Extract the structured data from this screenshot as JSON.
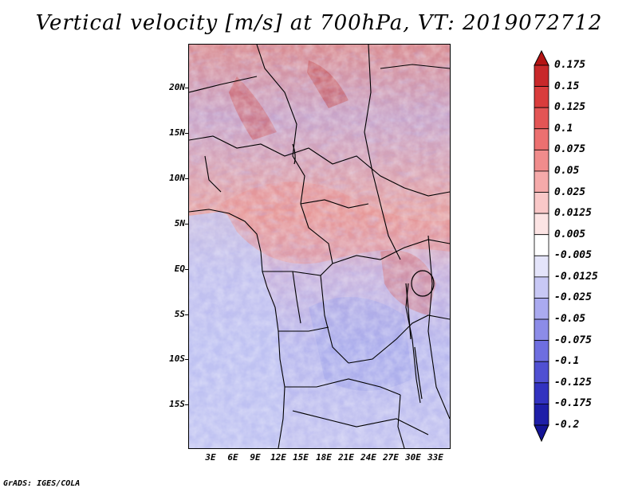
{
  "title": "Vertical velocity [m/s] at 700hPa, VT: 2019072712",
  "footer": "GrADS: IGES/COLA",
  "map": {
    "lat_labels": [
      "20N",
      "15N",
      "10N",
      "5N",
      "EQ",
      "5S",
      "10S",
      "15S"
    ],
    "lon_labels": [
      "3E",
      "6E",
      "9E",
      "12E",
      "15E",
      "18E",
      "21E",
      "24E",
      "27E",
      "30E",
      "33E"
    ]
  },
  "colorbar": {
    "levels": [
      "0.175",
      "0.15",
      "0.125",
      "0.1",
      "0.075",
      "0.05",
      "0.025",
      "0.0125",
      "0.005",
      "-0.005",
      "-0.0125",
      "-0.025",
      "-0.05",
      "-0.075",
      "-0.1",
      "-0.125",
      "-0.175",
      "-0.2"
    ],
    "colors": [
      "#b41414",
      "#c8282a",
      "#d93c3c",
      "#e35555",
      "#ec7070",
      "#f08c8c",
      "#f5aaaa",
      "#f9c8c8",
      "#fce4e4",
      "#ffffff",
      "#e4e4fa",
      "#c8c8f5",
      "#aaaaf0",
      "#8c8ce8",
      "#6e6ee0",
      "#5050d2",
      "#3232c0",
      "#1e1ea8",
      "#141496"
    ]
  }
}
